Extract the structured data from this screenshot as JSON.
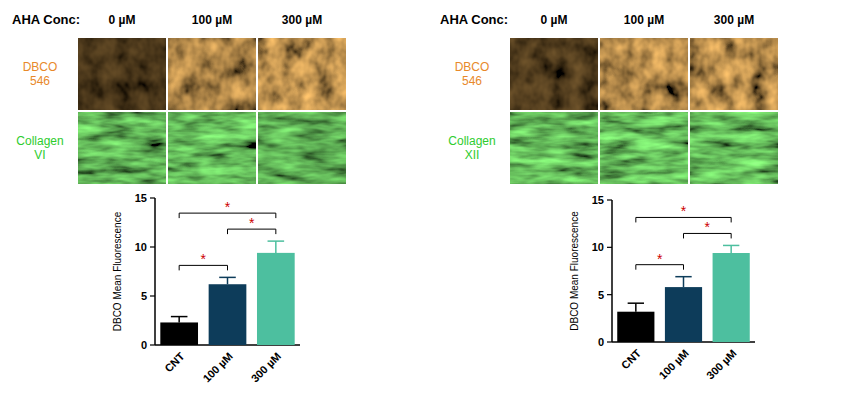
{
  "panels": [
    {
      "header": "AHA Conc:",
      "columns": [
        "0 µM",
        "100 µM",
        "300 µM"
      ],
      "rows": [
        {
          "lines": [
            "DBCO",
            "546"
          ]
        },
        {
          "lines": [
            "Collagen",
            "VI"
          ]
        }
      ]
    },
    {
      "header": "AHA Conc:",
      "columns": [
        "0 µM",
        "100 µM",
        "300 µM"
      ],
      "rows": [
        {
          "lines": [
            "DBCO",
            "546"
          ]
        },
        {
          "lines": [
            "Collagen",
            "XII"
          ]
        }
      ]
    }
  ],
  "chart_data": [
    {
      "type": "bar",
      "y_label": "DBCO Mean Fluorescence",
      "categories": [
        "CNT",
        "100 µM",
        "300 µM"
      ],
      "values": [
        2.3,
        6.2,
        9.4
      ],
      "errors": [
        0.6,
        0.7,
        1.2
      ],
      "colors": [
        "#000000",
        "#0d3c5a",
        "#4dbf9f"
      ],
      "ylim": [
        0,
        15
      ],
      "yticks": [
        0,
        5,
        10,
        15
      ],
      "comparisons": [
        {
          "pair": [
            0,
            1
          ],
          "label": "*"
        },
        {
          "pair": [
            1,
            2
          ],
          "label": "*"
        },
        {
          "pair": [
            0,
            2
          ],
          "label": "*"
        }
      ]
    },
    {
      "type": "bar",
      "y_label": "DBCO Mean Fluorescence",
      "categories": [
        "CNT",
        "100 µM",
        "300 µM"
      ],
      "values": [
        3.2,
        5.8,
        9.4
      ],
      "errors": [
        0.9,
        1.1,
        0.8
      ],
      "colors": [
        "#000000",
        "#0d3c5a",
        "#4dbf9f"
      ],
      "ylim": [
        0,
        15
      ],
      "yticks": [
        0,
        5,
        10,
        15
      ],
      "comparisons": [
        {
          "pair": [
            0,
            1
          ],
          "label": "*"
        },
        {
          "pair": [
            1,
            2
          ],
          "label": "*"
        },
        {
          "pair": [
            0,
            2
          ],
          "label": "*"
        }
      ]
    }
  ]
}
